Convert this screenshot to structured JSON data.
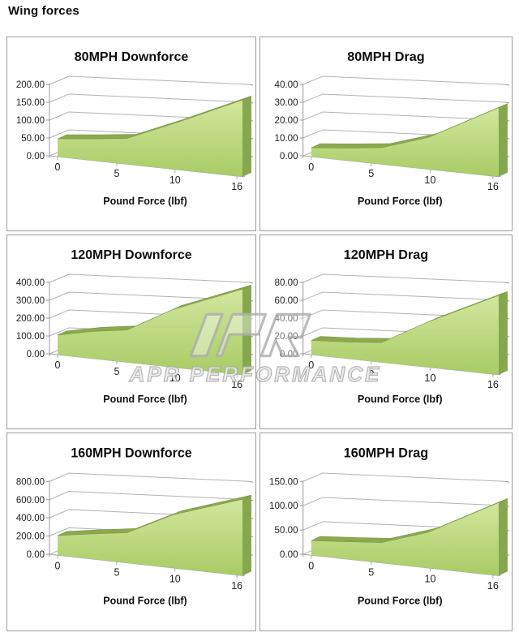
{
  "page": {
    "title": "Wing forces"
  },
  "watermark": {
    "logo": "APR",
    "text": "APR PERFORMANCE"
  },
  "colors": {
    "area_fill_top": "#d3e69e",
    "area_fill_bottom": "#a8cc64",
    "area_band": "#8ca950",
    "area_band_edge": "#7a9641",
    "area_side": "#85a84e",
    "gridline": "#b3b3b3",
    "axis": "#999999",
    "floor_edge": "#aaaaaa",
    "tick_text": "#222222",
    "cell_border": "#9c9c9c",
    "watermark_gray": "#b0b0b0"
  },
  "chart_data": [
    {
      "type": "area",
      "title": "80MPH Downforce",
      "xlabel": "Pound Force (lbf)",
      "x_ticks": [
        "0",
        "5",
        "10",
        "16"
      ],
      "y_ticks": [
        "200.00",
        "150.00",
        "100.00",
        "50.00",
        "0.00"
      ],
      "ylim": [
        0,
        200
      ],
      "xlim": [
        0,
        16
      ],
      "x": [
        0,
        3,
        6,
        10,
        16
      ],
      "values": [
        50,
        56,
        62,
        100,
        150
      ]
    },
    {
      "type": "area",
      "title": "80MPH Drag",
      "xlabel": "Pound Force (lbf)",
      "x_ticks": [
        "0",
        "5",
        "10",
        "16"
      ],
      "y_ticks": [
        "40.00",
        "30.00",
        "20.00",
        "10.00",
        "0.00"
      ],
      "ylim": [
        0,
        40
      ],
      "xlim": [
        0,
        16
      ],
      "x": [
        0,
        3,
        6,
        10,
        16
      ],
      "values": [
        5,
        6.5,
        8,
        14,
        27
      ]
    },
    {
      "type": "area",
      "title": "120MPH Downforce",
      "xlabel": "Pound Force (lbf)",
      "x_ticks": [
        "0",
        "5",
        "10",
        "16"
      ],
      "y_ticks": [
        "400.00",
        "300.00",
        "200.00",
        "100.00",
        "0.00"
      ],
      "ylim": [
        0,
        400
      ],
      "xlim": [
        0,
        16
      ],
      "x": [
        0,
        3,
        6,
        10,
        16
      ],
      "values": [
        110,
        140,
        155,
        255,
        335
      ]
    },
    {
      "type": "area",
      "title": "120MPH Drag",
      "xlabel": "Pound Force (lbf)",
      "x_ticks": [
        "0",
        "5",
        "10",
        "16"
      ],
      "y_ticks": [
        "80.00",
        "60.00",
        "40.00",
        "20.00",
        "0.00"
      ],
      "ylim": [
        0,
        80
      ],
      "xlim": [
        0,
        16
      ],
      "x": [
        0,
        3,
        6,
        10,
        16
      ],
      "values": [
        16,
        17,
        19,
        40,
        62
      ]
    },
    {
      "type": "area",
      "title": "160MPH Downforce",
      "xlabel": "Pound Force (lbf)",
      "x_ticks": [
        "0",
        "5",
        "10",
        "16"
      ],
      "y_ticks": [
        "800.00",
        "600.00",
        "400.00",
        "200.00",
        "0.00"
      ],
      "ylim": [
        0,
        800
      ],
      "xlim": [
        0,
        16
      ],
      "x": [
        0,
        3,
        6,
        10,
        16
      ],
      "values": [
        215,
        255,
        285,
        460,
        585
      ]
    },
    {
      "type": "area",
      "title": "160MPH Drag",
      "xlabel": "Pound Force (lbf)",
      "x_ticks": [
        "0",
        "5",
        "10",
        "16"
      ],
      "y_ticks": [
        "150.00",
        "100.00",
        "50.00",
        "0.00"
      ],
      "ylim": [
        0,
        150
      ],
      "xlim": [
        0,
        16
      ],
      "x": [
        0,
        3,
        6,
        10,
        16
      ],
      "values": [
        30,
        33,
        36,
        58,
        105
      ]
    }
  ]
}
